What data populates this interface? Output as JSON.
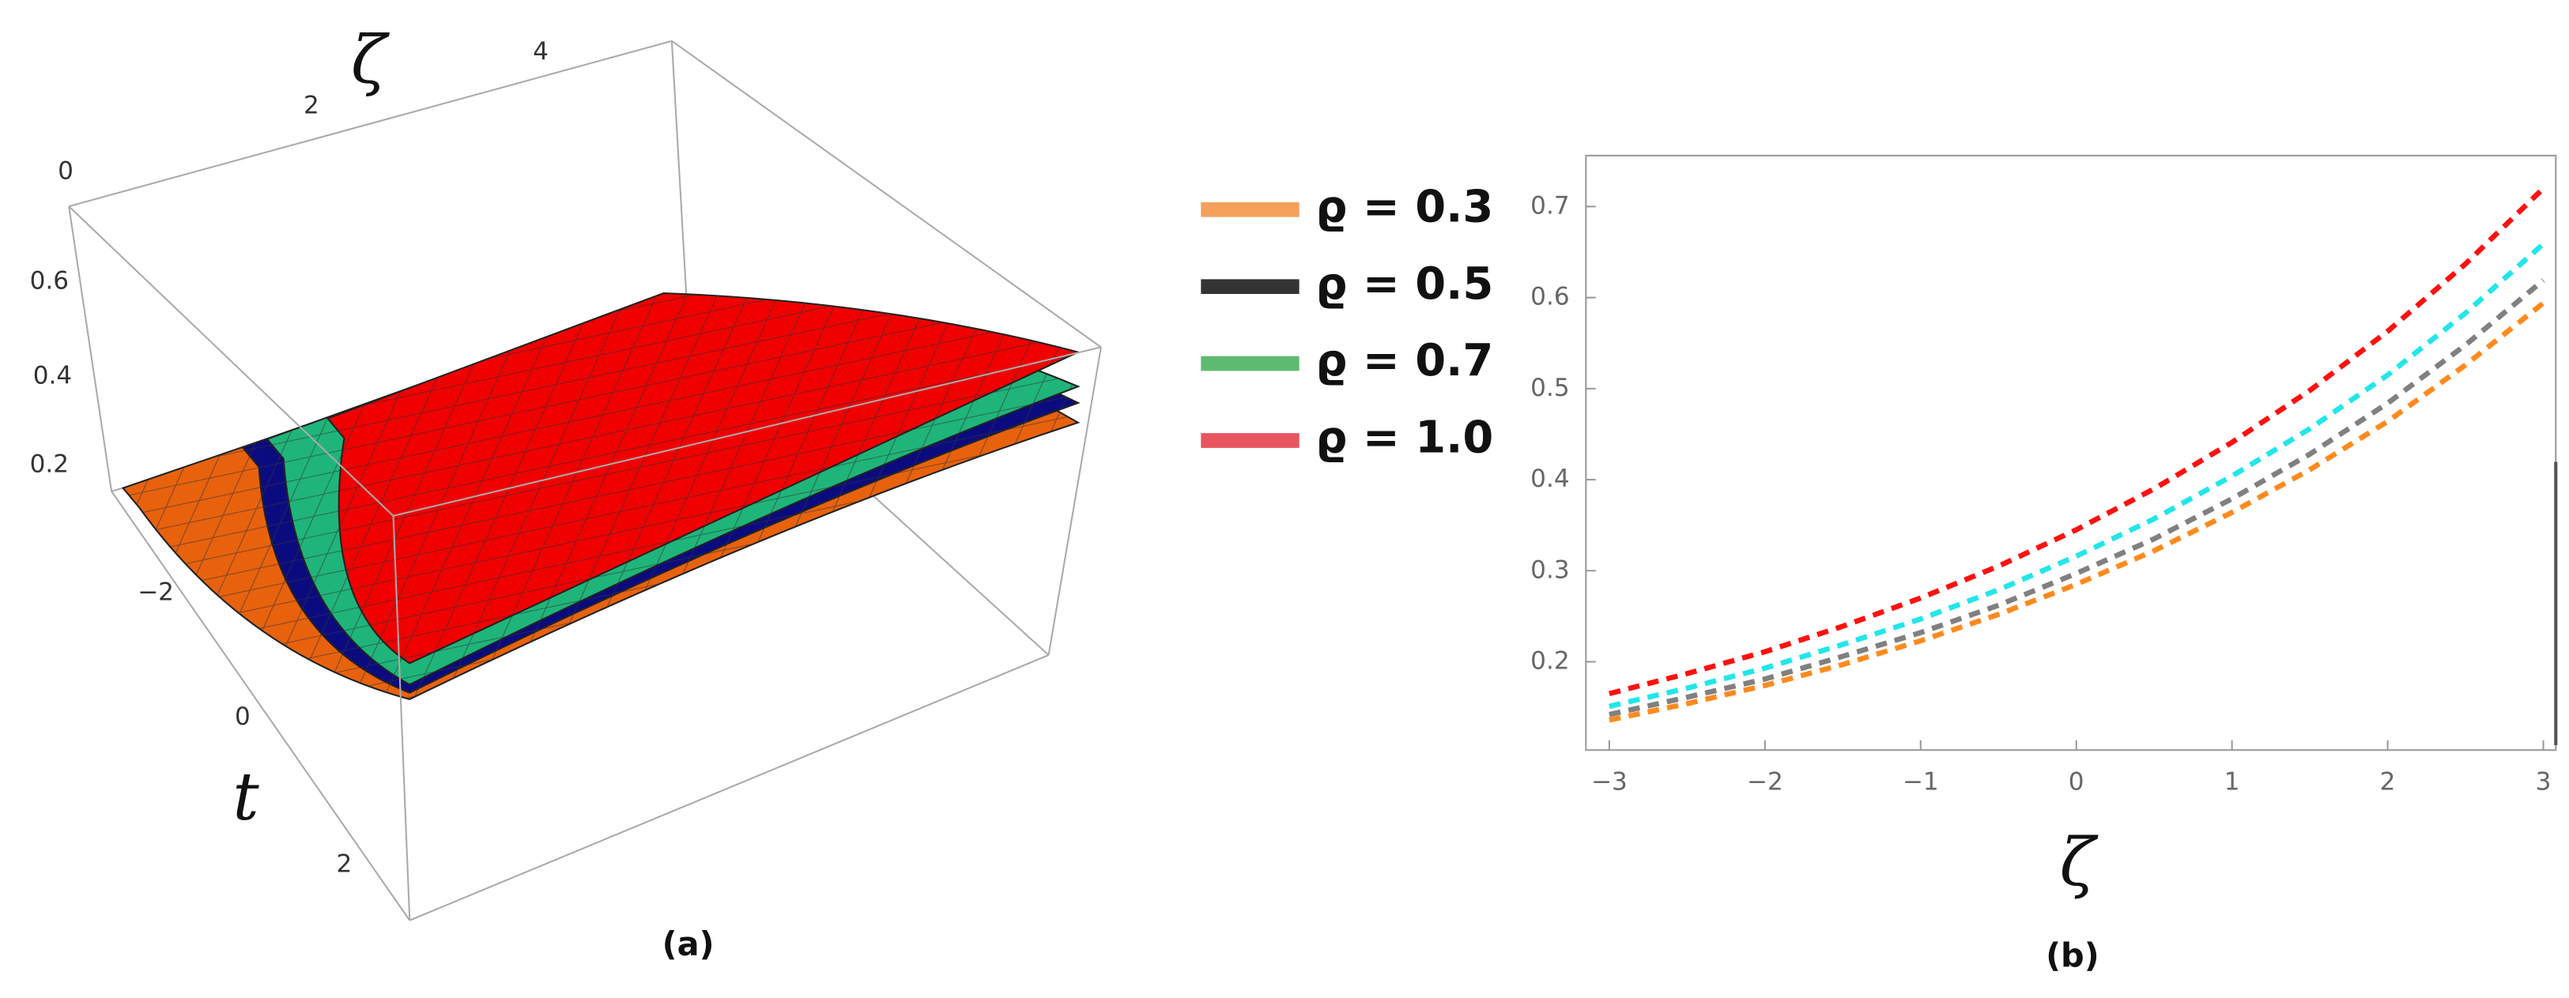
{
  "chart_data": [
    {
      "type": "surface",
      "caption": "(a)",
      "xlabel": "ζ",
      "ylabel": "t",
      "xticks": [
        0,
        2,
        4
      ],
      "yticks": [
        {
          "value": -2,
          "label": "−2"
        },
        0,
        2
      ],
      "zticks": [
        0.2,
        0.4,
        0.6
      ],
      "series": [
        {
          "name": "ϱ = 0.3",
          "color": "#f5a05a",
          "surface_color": "#e8620e"
        },
        {
          "name": "ϱ = 0.5",
          "color": "#333333",
          "surface_color": "#0b0b80"
        },
        {
          "name": "ϱ = 0.7",
          "color": "#5dbb70",
          "surface_color": "#1fb57a"
        },
        {
          "name": "ϱ = 1.0",
          "color": "#e8545e",
          "surface_color": "#f00000"
        }
      ]
    },
    {
      "type": "line",
      "caption": "(b)",
      "xlabel": "ζ",
      "dashed": true,
      "x": [
        -3,
        -2.5,
        -2,
        -1.5,
        -1,
        -0.5,
        0,
        0.5,
        1,
        1.5,
        2,
        2.5,
        3
      ],
      "xlim": [
        -3.15,
        3.08
      ],
      "ylim": [
        0.103,
        0.756
      ],
      "xticks": [
        {
          "value": -3,
          "label": "−3"
        },
        {
          "value": -2,
          "label": "−2"
        },
        {
          "value": -1,
          "label": "−1"
        },
        0,
        1,
        2,
        3
      ],
      "yticks": [
        0.2,
        0.3,
        0.4,
        0.5,
        0.6,
        0.7
      ],
      "series": [
        {
          "color": "#ff1010",
          "values": [
            0.165,
            0.187,
            0.211,
            0.239,
            0.27,
            0.305,
            0.345,
            0.39,
            0.441,
            0.498,
            0.563,
            0.637,
            0.72
          ]
        },
        {
          "color": "#22e6ea",
          "values": [
            0.151,
            0.171,
            0.193,
            0.219,
            0.247,
            0.279,
            0.316,
            0.357,
            0.404,
            0.456,
            0.515,
            0.583,
            0.659
          ]
        },
        {
          "color": "#808080",
          "values": [
            0.142,
            0.161,
            0.181,
            0.206,
            0.232,
            0.262,
            0.297,
            0.335,
            0.379,
            0.428,
            0.484,
            0.548,
            0.619
          ]
        },
        {
          "color": "#ff8a1e",
          "values": [
            0.136,
            0.154,
            0.174,
            0.197,
            0.223,
            0.252,
            0.285,
            0.322,
            0.364,
            0.411,
            0.464,
            0.526,
            0.594
          ]
        }
      ]
    }
  ]
}
